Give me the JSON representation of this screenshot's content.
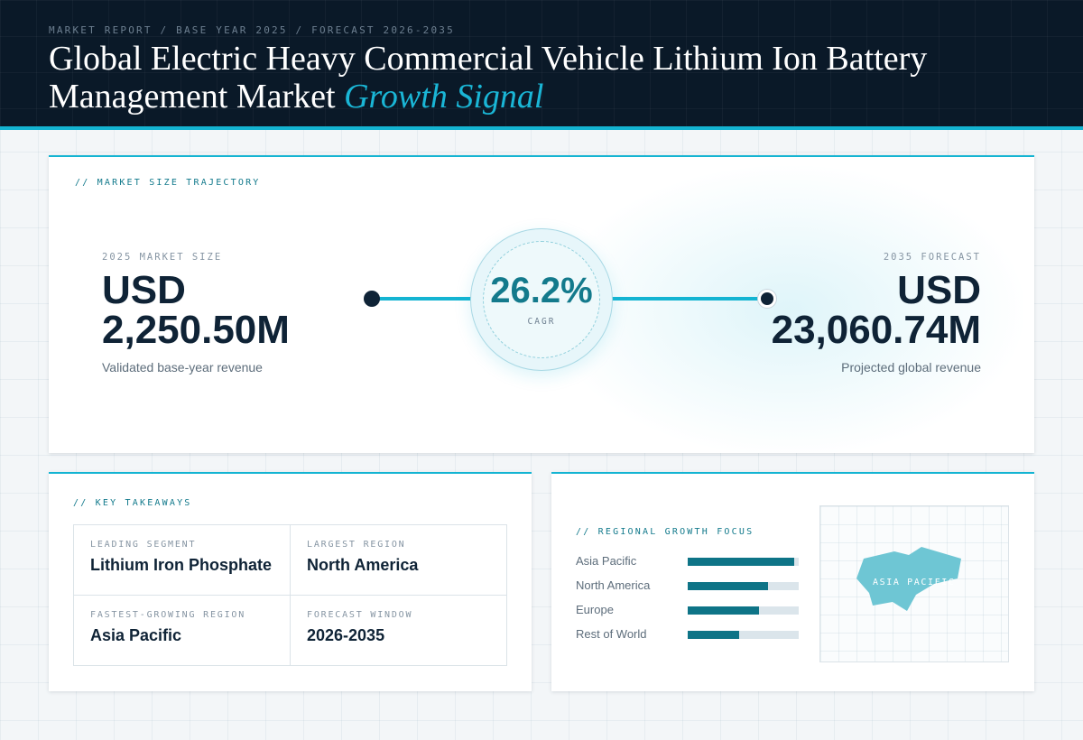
{
  "header": {
    "breadcrumb": "MARKET REPORT / BASE YEAR 2025 / FORECAST 2026-2035",
    "title_main": "Global Electric Heavy Commercial Vehicle Lithium Ion Battery Management Market",
    "title_accent": "Growth Signal"
  },
  "trajectory": {
    "section_label": "// MARKET SIZE TRAJECTORY",
    "start": {
      "label": "2025 MARKET SIZE",
      "currency": "USD",
      "value": "2,250.50M",
      "caption": "Validated base-year revenue"
    },
    "cagr": {
      "value": "26.2%",
      "label": "CAGR"
    },
    "end": {
      "label": "2035 FORECAST",
      "currency": "USD",
      "value": "23,060.74M",
      "caption": "Projected global revenue"
    }
  },
  "takeaways": {
    "section_label": "// KEY TAKEAWAYS",
    "items": [
      {
        "label": "LEADING SEGMENT",
        "value": "Lithium Iron Phosphate"
      },
      {
        "label": "LARGEST REGION",
        "value": "North America"
      },
      {
        "label": "FASTEST-GROWING REGION",
        "value": "Asia Pacific"
      },
      {
        "label": "FORECAST WINDOW",
        "value": "2026-2035"
      }
    ]
  },
  "regional": {
    "section_label": "// REGIONAL GROWTH FOCUS",
    "bars": [
      {
        "name": "Asia Pacific",
        "level": 0.96
      },
      {
        "name": "North America",
        "level": 0.72
      },
      {
        "name": "Europe",
        "level": 0.64
      },
      {
        "name": "Rest of World",
        "level": 0.46
      }
    ],
    "map_label": "ASIA PACIFIC"
  },
  "colors": {
    "header_bg": "#0a1928",
    "accent": "#14b4d2",
    "teal_dark": "#0e7487",
    "navy": "#0f2336",
    "map_shape": "#6ec6d4"
  }
}
